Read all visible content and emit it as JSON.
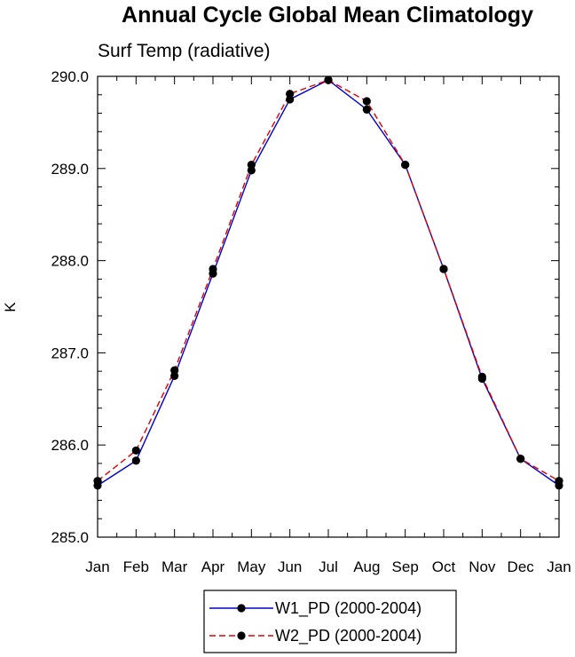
{
  "chart_data": {
    "type": "line",
    "title": "Annual Cycle Global Mean Climatology",
    "subtitle": "Surf Temp (radiative)",
    "xlabel": "",
    "ylabel": "K",
    "categories": [
      "Jan",
      "Feb",
      "Mar",
      "Apr",
      "May",
      "Jun",
      "Jul",
      "Aug",
      "Sep",
      "Oct",
      "Nov",
      "Dec",
      "Jan"
    ],
    "ylim": [
      285.0,
      290.0
    ],
    "yticks": [
      285.0,
      286.0,
      287.0,
      288.0,
      289.0,
      290.0
    ],
    "ytick_labels": [
      "285.0",
      "286.0",
      "287.0",
      "288.0",
      "289.0",
      "290.0"
    ],
    "grid": false,
    "legend_position": "bottom",
    "series": [
      {
        "name": "W1_PD (2000-2004)",
        "color": "#0000cc",
        "dash": "solid",
        "values": [
          285.56,
          285.83,
          286.75,
          287.86,
          288.98,
          289.75,
          289.96,
          289.64,
          289.04,
          287.91,
          286.72,
          285.85,
          285.56
        ]
      },
      {
        "name": "W2_PD (2000-2004)",
        "color": "#dd0000",
        "dash": "dashed",
        "values": [
          285.61,
          285.94,
          286.81,
          287.91,
          289.04,
          289.81,
          289.96,
          289.73,
          289.04,
          287.91,
          286.74,
          285.85,
          285.61
        ]
      }
    ]
  }
}
